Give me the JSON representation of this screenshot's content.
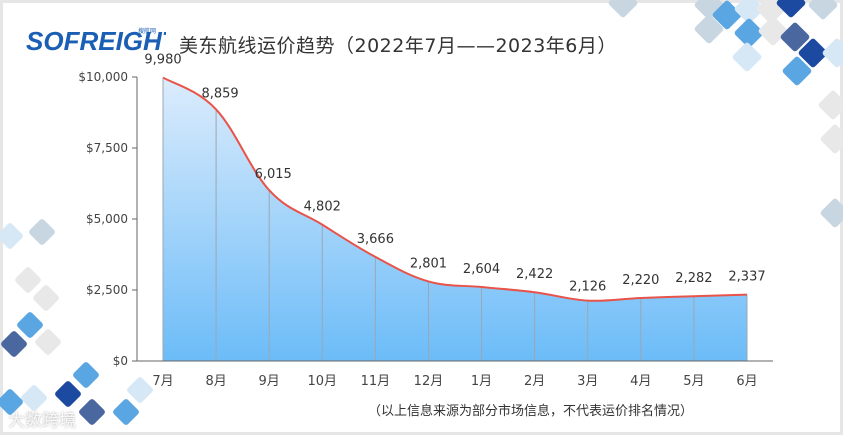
{
  "header": {
    "logo_text": "SOFREIGHT",
    "logo_sub": "搜航网",
    "title": "美东航线运价趋势（2022年7月——2023年6月）"
  },
  "footer": {
    "note": "（以上信息来源为部分市场信息，不代表运价排名情况）",
    "watermark": "大数跨境"
  },
  "colors": {
    "line": "#e8534a",
    "area_top": "#dcecfc",
    "area_bottom": "#6cbcf8",
    "axis": "#666666",
    "text": "#333333"
  },
  "chart_data": {
    "type": "area",
    "title": "美东航线运价趋势（2022年7月——2023年6月）",
    "xlabel": "",
    "ylabel": "",
    "categories": [
      "7月",
      "8月",
      "9月",
      "10月",
      "11月",
      "12月",
      "1月",
      "2月",
      "3月",
      "4月",
      "5月",
      "6月"
    ],
    "values": [
      9980,
      8859,
      6015,
      4802,
      3666,
      2801,
      2604,
      2422,
      2126,
      2220,
      2282,
      2337
    ],
    "value_labels": [
      "9,980",
      "8,859",
      "6,015",
      "4,802",
      "3,666",
      "2,801",
      "2,604",
      "2,422",
      "2,126",
      "2,220",
      "2,282",
      "2,337"
    ],
    "y_ticks": [
      "$0",
      "$2,500",
      "$5,000",
      "$7,500",
      "$10,000"
    ],
    "y_tick_values": [
      0,
      2500,
      5000,
      7500,
      10000
    ],
    "ylim": [
      0,
      10000
    ],
    "grid": false,
    "legend": "none",
    "smooth": true
  }
}
